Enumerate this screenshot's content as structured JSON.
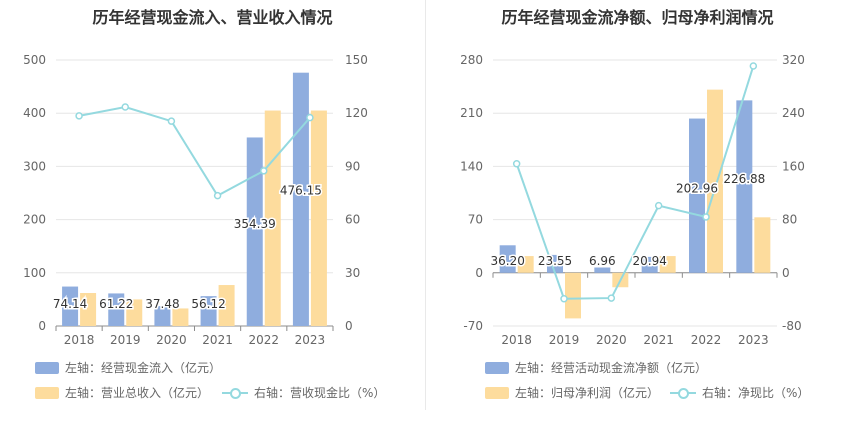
{
  "chart_data": [
    {
      "type": "bar+line",
      "title": "历年经营现金流入、营业收入情况",
      "categories": [
        "2018",
        "2019",
        "2020",
        "2021",
        "2022",
        "2023"
      ],
      "y_left": {
        "min": 0,
        "max": 500,
        "ticks": [
          "0",
          "100",
          "200",
          "300",
          "400",
          "500"
        ]
      },
      "y_right": {
        "min": 0,
        "max": 150,
        "ticks": [
          "0",
          "30",
          "60",
          "90",
          "120",
          "150"
        ]
      },
      "series": [
        {
          "name": "左轴：经营现金流入（亿元）",
          "kind": "bar",
          "axis": "left",
          "color": "#8fadde",
          "values": [
            74.14,
            61.22,
            37.48,
            56.12,
            354.39,
            476.15
          ],
          "labels": [
            "74.14",
            "61.22",
            "37.48",
            "56.12",
            "354.39",
            "476.15"
          ]
        },
        {
          "name": "左轴：营业总收入（亿元）",
          "kind": "bar",
          "axis": "left",
          "color": "#fddc9d",
          "values": [
            62,
            50,
            33,
            77,
            405,
            405
          ]
        },
        {
          "name": "右轴：营收现金比（%）",
          "kind": "line",
          "axis": "right",
          "color": "#94d9df",
          "values": [
            118.5,
            123.5,
            115.5,
            73.5,
            87.5,
            117.5
          ]
        }
      ],
      "legend_placement": "bottom",
      "grid": true
    },
    {
      "type": "bar+line",
      "title": "历年经营现金流净额、归母净利润情况",
      "categories": [
        "2018",
        "2019",
        "2020",
        "2021",
        "2022",
        "2023"
      ],
      "y_left": {
        "min": -70,
        "max": 280,
        "ticks": [
          "-70",
          "0",
          "70",
          "140",
          "210",
          "280"
        ]
      },
      "y_right": {
        "min": -80,
        "max": 320,
        "ticks": [
          "-80",
          "0",
          "80",
          "160",
          "240",
          "320"
        ]
      },
      "series": [
        {
          "name": "左轴：经营活动现金流净额（亿元）",
          "kind": "bar",
          "axis": "left",
          "color": "#8fadde",
          "values": [
            36.2,
            23.55,
            6.96,
            20.94,
            202.96,
            226.88
          ],
          "labels": [
            "36.20",
            "23.55",
            "6.96",
            "20.94",
            "202.96",
            "226.88"
          ]
        },
        {
          "name": "左轴：归母净利润（亿元）",
          "kind": "bar",
          "axis": "left",
          "color": "#fddc9d",
          "values": [
            22,
            -60,
            -19,
            22,
            241,
            73
          ]
        },
        {
          "name": "右轴：净现比（%）",
          "kind": "line",
          "axis": "right",
          "color": "#94d9df",
          "values": [
            164,
            -39,
            -38,
            101,
            84,
            311
          ]
        }
      ],
      "legend_placement": "bottom",
      "grid": true
    }
  ]
}
